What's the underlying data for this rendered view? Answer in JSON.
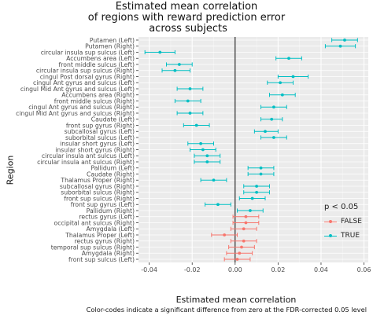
{
  "chart_data": {
    "type": "scatter",
    "subtype": "point-errorbar",
    "title_lines": [
      "Estimated mean correlation",
      "of regions with reward prediction error",
      " across subjects"
    ],
    "xlabel": "Estimated mean correlation",
    "ylabel": "Region",
    "xlim": [
      -0.045,
      0.062
    ],
    "x_ticks": [
      -0.04,
      -0.02,
      0.0,
      0.02,
      0.04,
      0.06
    ],
    "x_tick_labels": [
      "-0.04",
      "-0.02",
      "0.00",
      "0.02",
      "0.04",
      "0.06"
    ],
    "zero_line": 0,
    "grid": true,
    "caption": "Color-codes indicate a significant difference from zero at the FDR-corrected 0.05 level",
    "legend": {
      "title": "p < 0.05",
      "position": "right",
      "entries": [
        {
          "label": "FALSE",
          "color": "#F8766D"
        },
        {
          "label": "TRUE",
          "color": "#00BFC4"
        }
      ]
    },
    "colors": {
      "FALSE": "#F8766D",
      "TRUE": "#00BFC4"
    },
    "points": [
      {
        "region": "Putamen (Left)",
        "estimate": 0.051,
        "lower": 0.045,
        "upper": 0.057,
        "significant": "TRUE"
      },
      {
        "region": "Putamen (Right)",
        "estimate": 0.049,
        "lower": 0.042,
        "upper": 0.056,
        "significant": "TRUE"
      },
      {
        "region": "circular insula sup sulcus (Left)",
        "estimate": -0.035,
        "lower": -0.042,
        "upper": -0.028,
        "significant": "TRUE"
      },
      {
        "region": "Accumbens area (Left)",
        "estimate": 0.025,
        "lower": 0.019,
        "upper": 0.031,
        "significant": "TRUE"
      },
      {
        "region": "front middle sulcus (Left)",
        "estimate": -0.026,
        "lower": -0.032,
        "upper": -0.02,
        "significant": "TRUE"
      },
      {
        "region": "circular insula sup sulcus (Right)",
        "estimate": -0.028,
        "lower": -0.034,
        "upper": -0.021,
        "significant": "TRUE"
      },
      {
        "region": "cingul Post dorsal gyrus (Right)",
        "estimate": 0.027,
        "lower": 0.02,
        "upper": 0.034,
        "significant": "TRUE"
      },
      {
        "region": "cingul Ant gyrus and sulcus (Left)",
        "estimate": 0.021,
        "lower": 0.015,
        "upper": 0.027,
        "significant": "TRUE"
      },
      {
        "region": "cingul Mid Ant gyrus and sulcus (Left)",
        "estimate": -0.021,
        "lower": -0.027,
        "upper": -0.015,
        "significant": "TRUE"
      },
      {
        "region": "Accumbens area (Right)",
        "estimate": 0.022,
        "lower": 0.016,
        "upper": 0.028,
        "significant": "TRUE"
      },
      {
        "region": "front middle sulcus (Right)",
        "estimate": -0.022,
        "lower": -0.028,
        "upper": -0.016,
        "significant": "TRUE"
      },
      {
        "region": "cingul Ant gyrus and sulcus (Right)",
        "estimate": 0.018,
        "lower": 0.012,
        "upper": 0.024,
        "significant": "TRUE"
      },
      {
        "region": "cingul Mid Ant gyrus and sulcus (Right)",
        "estimate": -0.021,
        "lower": -0.027,
        "upper": -0.015,
        "significant": "TRUE"
      },
      {
        "region": "Caudate (Left)",
        "estimate": 0.017,
        "lower": 0.012,
        "upper": 0.022,
        "significant": "TRUE"
      },
      {
        "region": "front sup gyrus (Right)",
        "estimate": -0.018,
        "lower": -0.024,
        "upper": -0.012,
        "significant": "TRUE"
      },
      {
        "region": "subcallosal gyrus (Left)",
        "estimate": 0.014,
        "lower": 0.009,
        "upper": 0.02,
        "significant": "TRUE"
      },
      {
        "region": "suborbital sulcus (Left)",
        "estimate": 0.018,
        "lower": 0.012,
        "upper": 0.024,
        "significant": "TRUE"
      },
      {
        "region": "insular short gyrus (Left)",
        "estimate": -0.016,
        "lower": -0.022,
        "upper": -0.01,
        "significant": "TRUE"
      },
      {
        "region": "insular short gyrus (Right)",
        "estimate": -0.015,
        "lower": -0.021,
        "upper": -0.009,
        "significant": "TRUE"
      },
      {
        "region": "circular insula ant sulcus (Left)",
        "estimate": -0.013,
        "lower": -0.019,
        "upper": -0.007,
        "significant": "TRUE"
      },
      {
        "region": "circular insula ant sulcus (Right)",
        "estimate": -0.013,
        "lower": -0.019,
        "upper": -0.007,
        "significant": "TRUE"
      },
      {
        "region": "Pallidum (Left)",
        "estimate": 0.012,
        "lower": 0.006,
        "upper": 0.018,
        "significant": "TRUE"
      },
      {
        "region": "Caudate (Right)",
        "estimate": 0.012,
        "lower": 0.006,
        "upper": 0.018,
        "significant": "TRUE"
      },
      {
        "region": "Thalamus Proper (Right)",
        "estimate": -0.01,
        "lower": -0.016,
        "upper": -0.004,
        "significant": "TRUE"
      },
      {
        "region": "subcallosal gyrus (Right)",
        "estimate": 0.01,
        "lower": 0.004,
        "upper": 0.016,
        "significant": "TRUE"
      },
      {
        "region": "suborbital sulcus (Right)",
        "estimate": 0.01,
        "lower": 0.004,
        "upper": 0.016,
        "significant": "TRUE"
      },
      {
        "region": "front sup sulcus (Right)",
        "estimate": 0.008,
        "lower": 0.002,
        "upper": 0.014,
        "significant": "TRUE"
      },
      {
        "region": "front sup gyrus (Left)",
        "estimate": -0.008,
        "lower": -0.014,
        "upper": -0.002,
        "significant": "TRUE"
      },
      {
        "region": "Pallidum (Right)",
        "estimate": 0.007,
        "lower": 0.001,
        "upper": 0.013,
        "significant": "TRUE"
      },
      {
        "region": "rectus gyrus (Left)",
        "estimate": 0.005,
        "lower": -0.001,
        "upper": 0.011,
        "significant": "FALSE"
      },
      {
        "region": "occipital ant sulcus (Right)",
        "estimate": 0.005,
        "lower": -0.001,
        "upper": 0.011,
        "significant": "FALSE"
      },
      {
        "region": "Amygdala (Left)",
        "estimate": 0.004,
        "lower": -0.002,
        "upper": 0.01,
        "significant": "FALSE"
      },
      {
        "region": "Thalamus Proper (Left)",
        "estimate": -0.005,
        "lower": -0.011,
        "upper": 0.001,
        "significant": "FALSE"
      },
      {
        "region": "rectus gyrus (Right)",
        "estimate": 0.004,
        "lower": -0.002,
        "upper": 0.01,
        "significant": "FALSE"
      },
      {
        "region": "temporal sup sulcus (Right)",
        "estimate": 0.003,
        "lower": -0.003,
        "upper": 0.009,
        "significant": "FALSE"
      },
      {
        "region": "Amygdala (Right)",
        "estimate": 0.002,
        "lower": -0.004,
        "upper": 0.008,
        "significant": "FALSE"
      },
      {
        "region": "front sup sulcus (Left)",
        "estimate": 0.001,
        "lower": -0.005,
        "upper": 0.007,
        "significant": "FALSE"
      }
    ]
  }
}
